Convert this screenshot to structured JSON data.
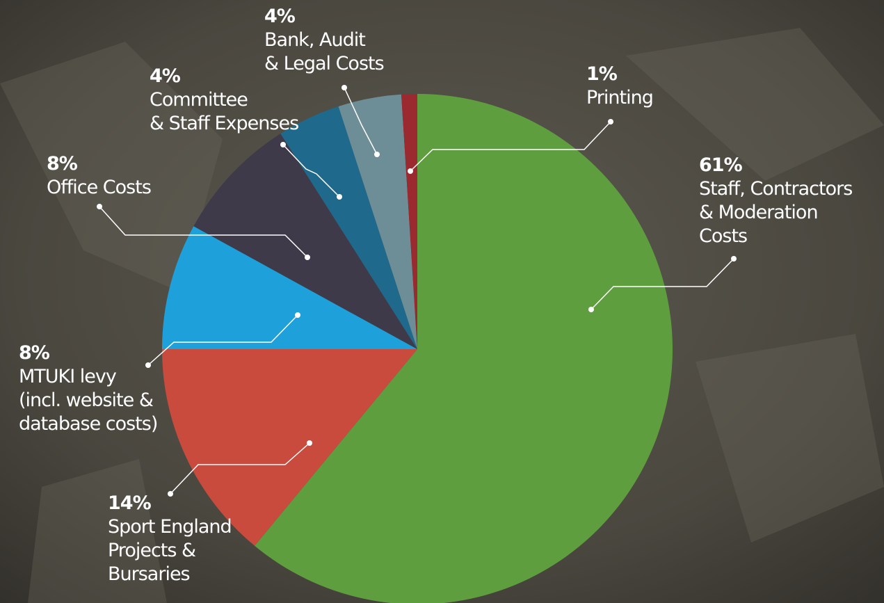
{
  "chart_data": {
    "type": "pie",
    "categories": [
      [
        "Staff, Contractors",
        "& Moderation",
        "Costs"
      ],
      [
        "Sport England",
        "Projects &",
        "Bursaries"
      ],
      [
        "MTUKI levy",
        "(incl. website &",
        "database costs)"
      ],
      [
        "Office Costs"
      ],
      [
        "Committee",
        "& Staff Expenses"
      ],
      [
        "Bank, Audit",
        "& Legal Costs"
      ],
      [
        "Printing"
      ]
    ],
    "values": [
      61,
      14,
      8,
      8,
      4,
      4,
      1
    ],
    "value_labels": [
      "61%",
      "14%",
      "8%",
      "8%",
      "4%",
      "4%",
      "1%"
    ],
    "colors": [
      "#5f9e3f",
      "#c84b3d",
      "#1ea0da",
      "#3e3a49",
      "#1f6a8c",
      "#6d8e96",
      "#9a2a30"
    ]
  }
}
